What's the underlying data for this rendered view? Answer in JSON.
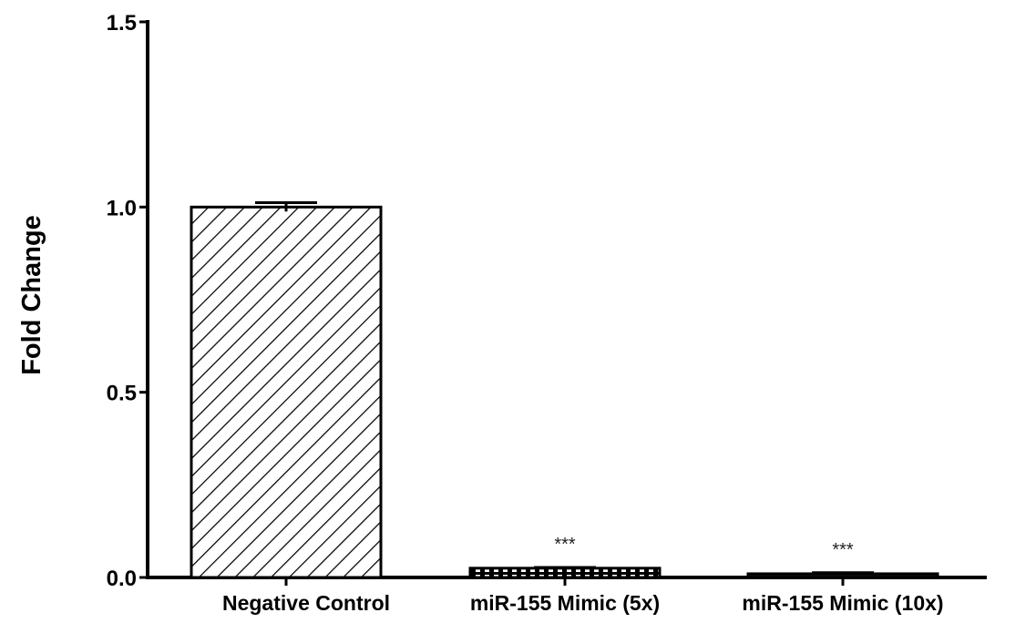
{
  "chart_data": {
    "type": "bar",
    "title": "",
    "xlabel": "",
    "ylabel": "Fold  Change",
    "ylim": [
      0,
      1.5
    ],
    "yticks": [
      "0.0",
      "0.5",
      "1.0",
      "1.5"
    ],
    "categories": [
      "Negative Control",
      "miR-155 Mimic (5x)",
      "miR-155 Mimic (10x)"
    ],
    "values": [
      1.0,
      0.025,
      0.01
    ],
    "errors": [
      0.012,
      0.002,
      0.003
    ],
    "fill_patterns": [
      "diagonal-hatch",
      "dotted",
      "solid-dark"
    ],
    "annotations": [
      "",
      "***",
      "***"
    ],
    "grid": false,
    "legend": "none"
  }
}
